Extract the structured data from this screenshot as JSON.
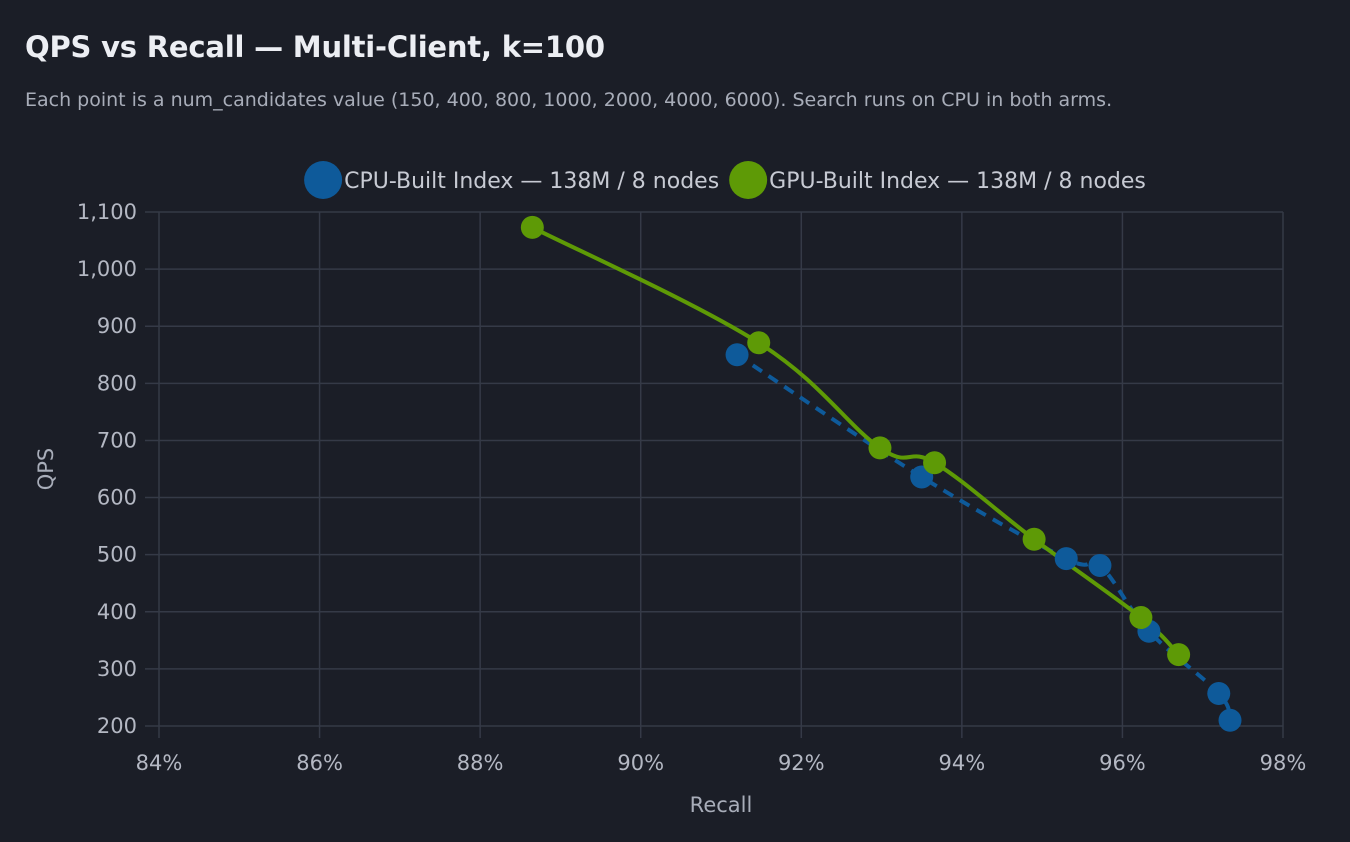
{
  "header": {
    "title": "QPS vs Recall — Multi-Client, k=100",
    "subtitle": "Each point is a num_candidates value (150, 400, 800, 1000, 2000, 4000, 6000). Search runs on CPU in both arms."
  },
  "chart_data": {
    "type": "line",
    "xlabel": "Recall",
    "ylabel": "QPS",
    "xlim": [
      0.84,
      0.98
    ],
    "ylim": [
      200,
      1100
    ],
    "x_ticks": [
      0.84,
      0.86,
      0.88,
      0.9,
      0.92,
      0.94,
      0.96,
      0.98
    ],
    "x_tick_labels": [
      "84%",
      "86%",
      "88%",
      "90%",
      "92%",
      "94%",
      "96%",
      "98%"
    ],
    "y_ticks": [
      200,
      300,
      400,
      500,
      600,
      700,
      800,
      900,
      1000,
      1100
    ],
    "y_tick_labels": [
      "200",
      "300",
      "400",
      "500",
      "600",
      "700",
      "800",
      "900",
      "1,000",
      "1,100"
    ],
    "grid": true,
    "legend_position": "top-center",
    "series": [
      {
        "name": "CPU-Built Index — 138M / 8 nodes",
        "color": "#0e5a9a",
        "line_style": "dashed",
        "points": [
          {
            "x": 0.912,
            "y": 850
          },
          {
            "x": 0.935,
            "y": 636
          },
          {
            "x": 0.953,
            "y": 493
          },
          {
            "x": 0.9572,
            "y": 481
          },
          {
            "x": 0.9633,
            "y": 366
          },
          {
            "x": 0.972,
            "y": 257
          },
          {
            "x": 0.9734,
            "y": 210
          }
        ]
      },
      {
        "name": "GPU-Built Index — 138M / 8 nodes",
        "color": "#5e9a06",
        "line_style": "solid",
        "points": [
          {
            "x": 0.8865,
            "y": 1073
          },
          {
            "x": 0.9147,
            "y": 871
          },
          {
            "x": 0.9298,
            "y": 687
          },
          {
            "x": 0.9366,
            "y": 661
          },
          {
            "x": 0.949,
            "y": 527
          },
          {
            "x": 0.9623,
            "y": 390
          },
          {
            "x": 0.967,
            "y": 325
          }
        ]
      }
    ]
  }
}
